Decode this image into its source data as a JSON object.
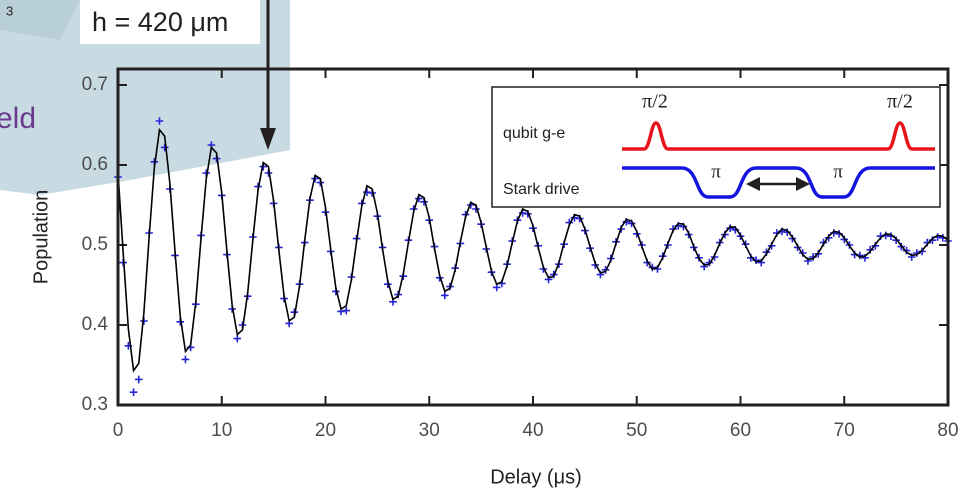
{
  "chart_data": {
    "type": "scatter",
    "xlabel": "Delay (μs)",
    "ylabel": "Population",
    "xlim": [
      0,
      80
    ],
    "xticks": [
      0,
      10,
      20,
      30,
      40,
      50,
      60,
      70,
      80
    ],
    "ylim": [
      0.3,
      0.72
    ],
    "yticks": [
      0.3,
      0.4,
      0.5,
      0.6,
      0.7
    ],
    "annotations": {
      "height": "h = 420 μm",
      "partial_word": "eld",
      "partial_sup": "3"
    },
    "inset": {
      "qubit_label": "qubit g-e",
      "stark_label": "Stark drive",
      "pulse1": "π/2",
      "pulse2": "π/2",
      "pi1": "π",
      "pi2": "π"
    },
    "x": [
      0,
      0.5,
      1,
      1.5,
      2,
      2.5,
      3,
      3.5,
      4,
      4.5,
      5,
      5.5,
      6,
      6.5,
      7,
      7.5,
      8,
      8.5,
      9,
      9.5,
      10,
      10.5,
      11,
      11.5,
      12,
      12.5,
      13,
      13.5,
      14,
      14.5,
      15,
      15.5,
      16,
      16.5,
      17,
      17.5,
      18,
      18.5,
      19,
      19.5,
      20,
      20.5,
      21,
      21.5,
      22,
      22.5,
      23,
      23.5,
      24,
      24.5,
      25,
      25.5,
      26,
      26.5,
      27,
      27.5,
      28,
      28.5,
      29,
      29.5,
      30,
      30.5,
      31,
      31.5,
      32,
      32.5,
      33,
      33.5,
      34,
      34.5,
      35,
      35.5,
      36,
      36.5,
      37,
      37.5,
      38,
      38.5,
      39,
      39.5,
      40,
      40.5,
      41,
      41.5,
      42,
      42.5,
      43,
      43.5,
      44,
      44.5,
      45,
      45.5,
      46,
      46.5,
      47,
      47.5,
      48,
      48.5,
      49,
      49.5,
      50,
      50.5,
      51,
      51.5,
      52,
      52.5,
      53,
      53.5,
      54,
      54.5,
      55,
      55.5,
      56,
      56.5,
      57,
      57.5,
      58,
      58.5,
      59,
      59.5,
      60,
      60.5,
      61,
      61.5,
      62,
      62.5,
      63,
      63.5,
      64,
      64.5,
      65,
      65.5,
      66,
      66.5,
      67,
      67.5,
      68,
      68.5,
      69,
      69.5,
      70,
      70.5,
      71,
      71.5,
      72,
      72.5,
      73,
      73.5,
      74,
      74.5,
      75,
      75.5,
      76,
      76.5,
      77,
      77.5,
      78,
      78.5,
      79,
      79.5,
      80
    ],
    "series": [
      {
        "type": "scatter",
        "color": "#2424d6",
        "values": [
          0.585,
          0.478,
          0.374,
          0.316,
          0.332,
          0.405,
          0.515,
          0.604,
          0.655,
          0.622,
          0.57,
          0.487,
          0.404,
          0.357,
          0.372,
          0.426,
          0.512,
          0.59,
          0.625,
          0.608,
          0.562,
          0.488,
          0.42,
          0.383,
          0.4,
          0.436,
          0.51,
          0.573,
          0.598,
          0.59,
          0.552,
          0.497,
          0.433,
          0.402,
          0.416,
          0.451,
          0.503,
          0.556,
          0.583,
          0.578,
          0.541,
          0.492,
          0.442,
          0.417,
          0.418,
          0.46,
          0.508,
          0.552,
          0.566,
          0.565,
          0.536,
          0.497,
          0.451,
          0.429,
          0.438,
          0.461,
          0.506,
          0.545,
          0.558,
          0.554,
          0.531,
          0.498,
          0.459,
          0.437,
          0.448,
          0.471,
          0.502,
          0.538,
          0.55,
          0.545,
          0.526,
          0.495,
          0.466,
          0.447,
          0.452,
          0.476,
          0.505,
          0.531,
          0.54,
          0.539,
          0.521,
          0.499,
          0.47,
          0.457,
          0.463,
          0.476,
          0.501,
          0.528,
          0.534,
          0.533,
          0.518,
          0.496,
          0.475,
          0.463,
          0.469,
          0.483,
          0.504,
          0.52,
          0.529,
          0.527,
          0.514,
          0.5,
          0.478,
          0.472,
          0.47,
          0.486,
          0.5,
          0.52,
          0.524,
          0.523,
          0.513,
          0.497,
          0.484,
          0.473,
          0.478,
          0.485,
          0.503,
          0.513,
          0.521,
          0.519,
          0.511,
          0.501,
          0.484,
          0.481,
          0.478,
          0.491,
          0.499,
          0.515,
          0.517,
          0.516,
          0.508,
          0.497,
          0.49,
          0.48,
          0.485,
          0.489,
          0.503,
          0.509,
          0.515,
          0.514,
          0.507,
          0.5,
          0.488,
          0.487,
          0.484,
          0.494,
          0.499,
          0.511,
          0.512,
          0.511,
          0.506,
          0.498,
          0.493,
          0.485,
          0.49,
          0.492,
          0.503,
          0.506,
          0.51,
          0.509,
          0.505
        ]
      },
      {
        "type": "line",
        "color": "#000000",
        "values": [
          0.591,
          0.49,
          0.395,
          0.343,
          0.352,
          0.416,
          0.51,
          0.596,
          0.644,
          0.636,
          0.577,
          0.491,
          0.411,
          0.367,
          0.375,
          0.429,
          0.508,
          0.582,
          0.622,
          0.615,
          0.565,
          0.492,
          0.425,
          0.388,
          0.394,
          0.44,
          0.507,
          0.569,
          0.603,
          0.598,
          0.555,
          0.494,
          0.437,
          0.405,
          0.41,
          0.449,
          0.506,
          0.558,
          0.587,
          0.583,
          0.547,
          0.495,
          0.446,
          0.42,
          0.424,
          0.457,
          0.505,
          0.549,
          0.574,
          0.57,
          0.54,
          0.495,
          0.455,
          0.432,
          0.436,
          0.464,
          0.504,
          0.542,
          0.563,
          0.559,
          0.534,
          0.496,
          0.462,
          0.442,
          0.446,
          0.469,
          0.504,
          0.535,
          0.553,
          0.55,
          0.528,
          0.497,
          0.467,
          0.451,
          0.454,
          0.474,
          0.503,
          0.53,
          0.545,
          0.542,
          0.524,
          0.497,
          0.472,
          0.459,
          0.461,
          0.478,
          0.503,
          0.525,
          0.538,
          0.536,
          0.52,
          0.498,
          0.477,
          0.465,
          0.467,
          0.481,
          0.502,
          0.522,
          0.532,
          0.53,
          0.517,
          0.498,
          0.48,
          0.47,
          0.472,
          0.484,
          0.502,
          0.518,
          0.527,
          0.526,
          0.515,
          0.498,
          0.483,
          0.475,
          0.476,
          0.487,
          0.502,
          0.515,
          0.523,
          0.522,
          0.512,
          0.499,
          0.486,
          0.479,
          0.48,
          0.489,
          0.501,
          0.513,
          0.52,
          0.518,
          0.51,
          0.499,
          0.488,
          0.482,
          0.483,
          0.49,
          0.501,
          0.511,
          0.517,
          0.516,
          0.509,
          0.499,
          0.49,
          0.485,
          0.486,
          0.492,
          0.501,
          0.509,
          0.514,
          0.513,
          0.508,
          0.499,
          0.491,
          0.487,
          0.488,
          0.493,
          0.501,
          0.508,
          0.512,
          0.511,
          0.506
        ]
      }
    ]
  }
}
